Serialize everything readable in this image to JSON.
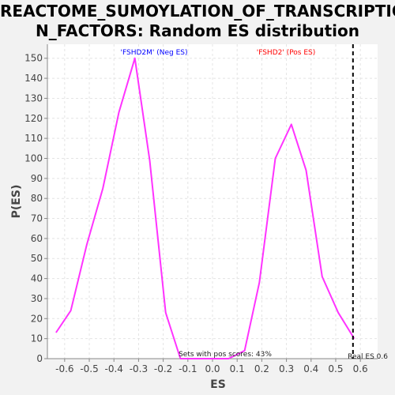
{
  "chart_data": {
    "type": "line",
    "title_line1": "REACTOME_SUMOYLATION_OF_TRANSCRIPTIO",
    "title_line2": "N_FACTORS: Random ES distribution",
    "xlabel": "ES",
    "ylabel": "P(ES)",
    "xlim": [
      -0.67,
      0.67
    ],
    "ylim": [
      0,
      157
    ],
    "x_ticks": [
      -0.6,
      -0.5,
      -0.4,
      -0.3,
      -0.2,
      -0.1,
      0.0,
      0.1,
      0.2,
      0.3,
      0.4,
      0.5,
      0.6
    ],
    "x_tick_labels": [
      "-0.6",
      "-0.5",
      "-0.4",
      "-0.3",
      "-0.2",
      "-0.1",
      "0.0",
      "0.1",
      "0.2",
      "0.3",
      "0.4",
      "0.5",
      "0.6"
    ],
    "y_ticks": [
      0,
      10,
      20,
      30,
      40,
      50,
      60,
      70,
      80,
      90,
      100,
      110,
      120,
      130,
      140,
      150
    ],
    "grid": true,
    "series": [
      {
        "color": "#ff33ff",
        "x": [
          -0.635,
          -0.575,
          -0.51,
          -0.445,
          -0.38,
          -0.315,
          -0.255,
          -0.19,
          -0.13,
          -0.065,
          0.0,
          0.065,
          0.13,
          0.19,
          0.255,
          0.32,
          0.38,
          0.445,
          0.51,
          0.575
        ],
        "y": [
          13,
          24,
          57,
          85,
          123,
          150,
          99,
          23,
          0,
          0,
          0,
          0,
          4,
          38,
          100,
          117,
          94,
          41,
          23,
          10
        ]
      }
    ],
    "legend_neg": {
      "text": "'FSHD2M' (Neg ES)",
      "color": "#0000ff"
    },
    "legend_pos": {
      "text": "'FSHD2' (Pos ES)",
      "color": "#ff0000"
    },
    "real_es": {
      "value": 0.57,
      "label": "Real ES 0.6"
    },
    "annotation": "Sets with pos scores: 43%"
  }
}
